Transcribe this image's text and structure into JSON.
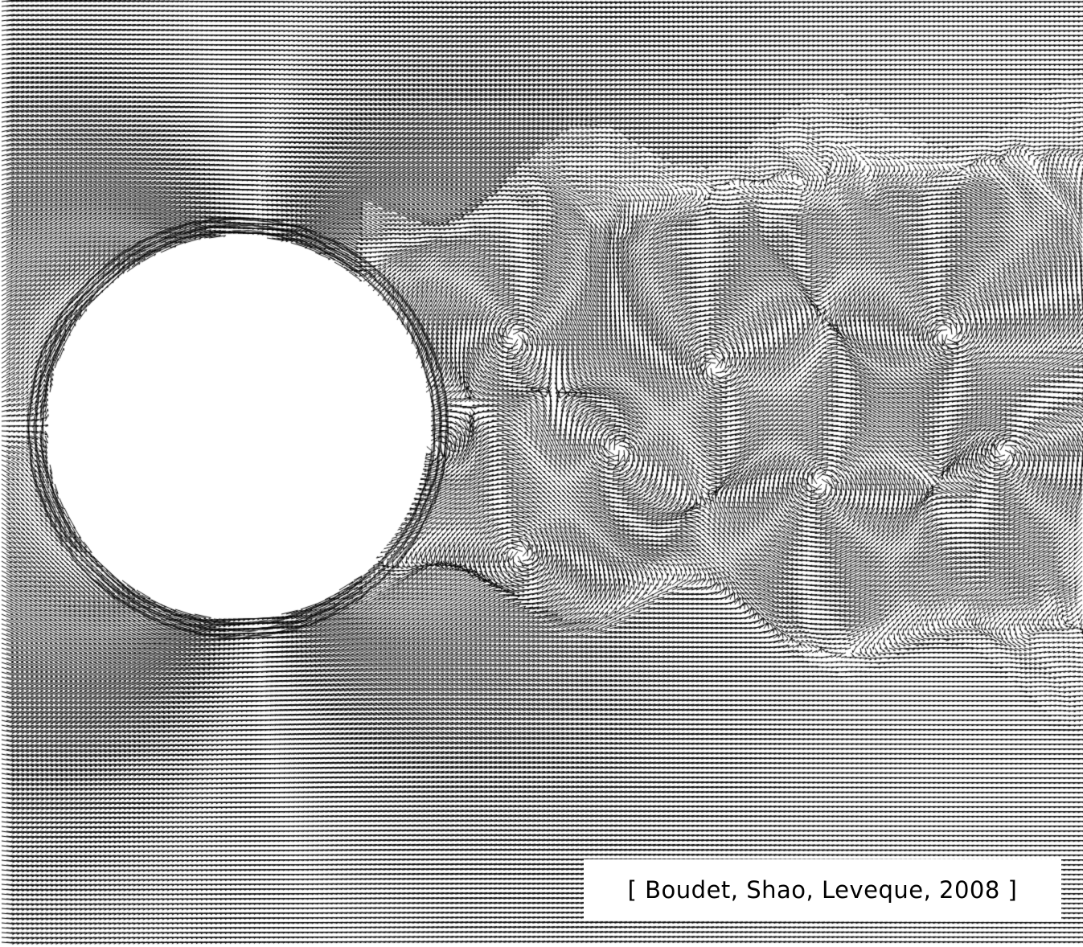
{
  "citation": {
    "text": "[ Boudet, Shao, Leveque, 2008 ]"
  },
  "figure": {
    "colors": {
      "background": "#ffffff",
      "vectors": "#000000",
      "cylinder": "#ffffff"
    }
  }
}
